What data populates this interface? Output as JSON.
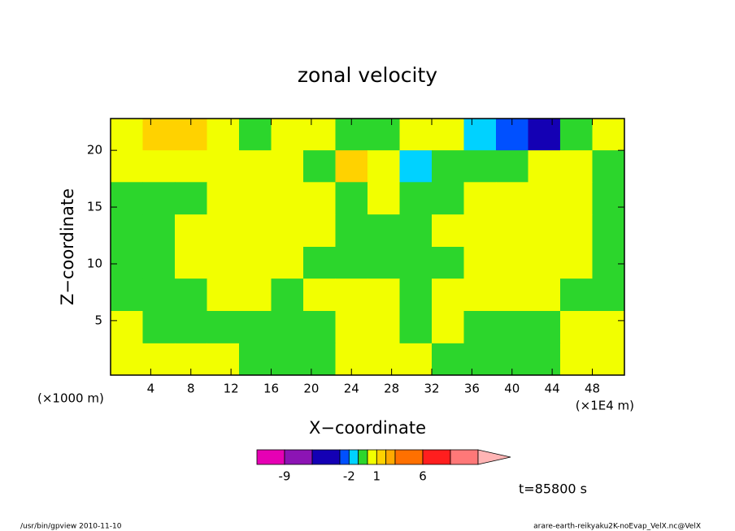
{
  "chart_data": {
    "type": "contour",
    "title": "zonal velocity",
    "x_label": "X−coordinate",
    "y_label": "Z−coordinate",
    "y_unit": "(×1000 m)",
    "x_unit": "(×1E4 m)",
    "time_label": "t=85800 s",
    "footer_left": "/usr/bin/gpview   2010-11-10",
    "footer_right": "arare-earth-reikyaku2K-noEvap_VelX.nc@VelX",
    "xlim": [
      0,
      51.2
    ],
    "ylim": [
      0.2,
      22.8
    ],
    "xticks": [
      4,
      8,
      12,
      16,
      20,
      24,
      28,
      32,
      36,
      40,
      44,
      48
    ],
    "yticks": [
      5,
      10,
      15,
      20
    ],
    "x": [
      1.6,
      4.8,
      8,
      11.2,
      14.4,
      17.6,
      20.8,
      24,
      27.2,
      30.4,
      33.6,
      36.8,
      40,
      43.2,
      46.4,
      49.6
    ],
    "y": [
      21.4,
      18.6,
      15.8,
      12.9,
      10.1,
      7.3,
      4.4,
      1.6
    ],
    "z": [
      [
        0.5,
        1.5,
        1.5,
        0.5,
        -0.5,
        0.5,
        0.5,
        -0.5,
        -0.5,
        0.5,
        0.5,
        -1.5,
        -2.5,
        -4,
        -0.5,
        0.5
      ],
      [
        0.5,
        0.5,
        0.5,
        0.5,
        0.5,
        0.5,
        -0.5,
        1.5,
        0.5,
        -1.5,
        -0.5,
        -0.5,
        -0.5,
        0.5,
        0.5,
        -0.5
      ],
      [
        -0.5,
        -0.5,
        -0.5,
        0.5,
        0.5,
        0.5,
        0.5,
        -0.5,
        0.5,
        -0.5,
        -0.5,
        0.5,
        0.5,
        0.5,
        0.5,
        -0.5
      ],
      [
        -0.5,
        -0.5,
        0.5,
        0.5,
        0.5,
        0.5,
        0.5,
        -0.5,
        -0.5,
        -0.5,
        0.5,
        0.5,
        0.5,
        0.5,
        0.5,
        -0.5
      ],
      [
        -0.5,
        -0.5,
        0.5,
        0.5,
        0.5,
        0.5,
        -0.5,
        -0.5,
        -0.5,
        -0.5,
        -0.5,
        0.5,
        0.5,
        0.5,
        0.5,
        -0.5
      ],
      [
        -0.5,
        -0.5,
        -0.5,
        0.5,
        0.5,
        -0.5,
        0.5,
        0.5,
        0.5,
        -0.5,
        0.5,
        0.5,
        0.5,
        0.5,
        -0.5,
        -0.5
      ],
      [
        0.5,
        -0.5,
        -0.5,
        -0.5,
        -0.5,
        -0.5,
        -0.5,
        0.5,
        0.5,
        -0.5,
        0.5,
        -0.5,
        -0.5,
        -0.5,
        0.5,
        0.5
      ],
      [
        0.5,
        0.5,
        0.5,
        0.5,
        -0.5,
        -0.5,
        -0.5,
        0.5,
        0.5,
        0.5,
        -0.5,
        -0.5,
        -0.5,
        -0.5,
        0.5,
        0.5
      ]
    ],
    "levels": [
      -12,
      -9,
      -6,
      -3,
      -2,
      -1,
      0,
      1,
      2,
      3,
      6,
      9,
      12
    ],
    "colors": [
      "#e600b4",
      "#8c14b4",
      "#1400b4",
      "#0050ff",
      "#00d2ff",
      "#2cd62c",
      "#f2ff00",
      "#ffd200",
      "#ffaa00",
      "#ff7000",
      "#ff1e1e",
      "#ff7878",
      "#ffb4b4"
    ],
    "colorbar_ticks": [
      -9,
      -2,
      1,
      6
    ]
  }
}
